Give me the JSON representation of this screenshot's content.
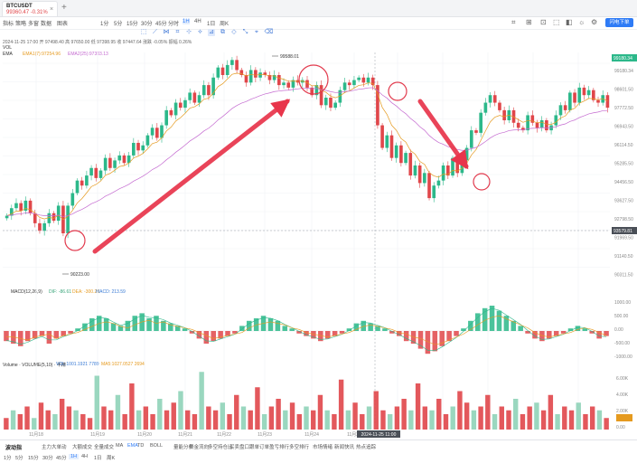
{
  "tab": {
    "symbol": "BTCUSDT",
    "price_line": "99360.47 -0.31%",
    "close": "×",
    "add": "+"
  },
  "toolbar": {
    "items": [
      "指标",
      "策略",
      "多窗",
      "数据",
      "图表",
      "1分",
      "5分",
      "15分",
      "30分",
      "45分",
      "分时",
      "1H",
      "4H",
      "1日",
      "周K"
    ],
    "selected": "1H",
    "right_icons": [
      "⌗",
      "⊞",
      "⊡",
      "⬚",
      "◧",
      "☼",
      "⚙"
    ],
    "order_button": "闪电下单"
  },
  "draw_tools": {
    "icons": [
      "⬚",
      "⟋",
      "⋈",
      "⌗",
      "⊹",
      "⟡",
      "⊿",
      "⧉",
      "◇",
      "⤡",
      "⌖",
      "⌫"
    ],
    "active_index": 6
  },
  "info": {
    "ohlc": "2024-11-25 17:00 开 97498.40 高 97650.00 低 97398.95 收 97447.64 涨跌 -0.05% 振幅 0.26%",
    "vol": "VOL",
    "ema_name": "EMA",
    "ema1": "EMA1(7):97254.96",
    "ema2": "EMA2(25):97303.13"
  },
  "price_axis": {
    "labels": [
      "99180.34",
      "98601.50",
      "97772.50",
      "96943.50",
      "96114.50",
      "95285.50",
      "94456.50",
      "93627.50",
      "92798.50",
      "91969.50",
      "91140.50",
      "90311.50"
    ],
    "current_price": "99180.34",
    "crosshair_price": "93579.81"
  },
  "macd": {
    "label": "MACD(12,26,9)",
    "dif": "DIF: -86.61",
    "dea": "DEA: -300.20",
    "macd": "MACD: 213.59",
    "axis": [
      "1000.00",
      "500.00",
      "0.00",
      "-500.00",
      "-1000.00"
    ]
  },
  "volume": {
    "label": "Volume · VOLUME(5,10) · 半精",
    "v": "VOL:1001.1921 7789",
    "ma5": "MA5:1027.0527 2694",
    "axis": [
      "6.00K",
      "4.00K",
      "2.00K",
      "0.00"
    ]
  },
  "time_axis": {
    "labels": [
      "11月18",
      "11月19",
      "11月20",
      "11月21",
      "11月22",
      "11月23",
      "11月24",
      "11月25"
    ],
    "crosshair": "2024-11-25 11:00"
  },
  "bottom": {
    "categories": [
      "波动指",
      "主力大单动",
      "大额成交",
      "全量成交",
      "MA",
      "EMA",
      "TD",
      "BOLL",
      "量能分布",
      "资金流向",
      "多空持仓比",
      "买卖盘口",
      "跟单订单",
      "盈亏排行",
      "多空排行",
      "市场情绪",
      "新闻快讯",
      "热点追踪"
    ],
    "selected_category": "EMA",
    "periods": [
      "1分",
      "5分",
      "15分",
      "30分",
      "45分",
      "1H",
      "4H",
      "1日",
      "周K"
    ],
    "selected_period": "1H"
  },
  "chart_data": {
    "type": "candlestick",
    "ylim": [
      90311,
      99600
    ],
    "candle_close_trend": [
      93100,
      93400,
      93600,
      93300,
      93700,
      93200,
      92800,
      92500,
      92800,
      93200,
      92900,
      93500,
      92400,
      93500,
      94000,
      94500,
      94300,
      94700,
      95000,
      94600,
      94900,
      95400,
      95000,
      95300,
      95500,
      95200,
      95500,
      96000,
      95700,
      95900,
      96300,
      96600,
      96200,
      96700,
      97300,
      97100,
      97600,
      97400,
      97700,
      98000,
      97600,
      97900,
      98300,
      97900,
      98600,
      99000,
      98700,
      99100,
      99300,
      98900,
      98700,
      98400,
      98900,
      98600,
      98800,
      98700,
      98500,
      98700,
      98300,
      98400,
      98200,
      98500,
      98400,
      98500,
      98200,
      97900,
      98300,
      97500,
      97800,
      97400,
      97600,
      98100,
      98400,
      98300,
      98500,
      98600,
      98400,
      98600,
      98300,
      96700,
      95800,
      96300,
      95400,
      95900,
      95200,
      95600,
      94700,
      95100,
      94400,
      94800,
      93800,
      94300,
      94500,
      95100,
      94700,
      95400,
      94800,
      95300,
      95800,
      96500,
      96400,
      97200,
      97600,
      97900,
      97600,
      97300,
      96900,
      97300,
      96800,
      96600,
      96500,
      97100,
      96800,
      96600,
      96900,
      96500,
      96700,
      97100,
      97500,
      97300,
      98000,
      97600,
      98200,
      97900,
      98100,
      97700,
      97600,
      97900,
      97400
    ],
    "macd_histogram_trend": [
      -0.4,
      -0.5,
      -0.6,
      -0.4,
      -0.3,
      -0.2,
      -0.5,
      -0.3,
      -0.2,
      -0.1,
      0.1,
      0.3,
      0.5,
      0.6,
      0.5,
      0.3,
      0.2,
      0.4,
      0.6,
      0.7,
      0.5,
      0.6,
      0.4,
      0.3,
      0.2,
      0.1,
      -0.1,
      -0.3,
      -0.5,
      -0.4,
      -0.3,
      -0.2,
      -0.1,
      0.2,
      0.4,
      0.5,
      0.6,
      0.5,
      0.4,
      0.2,
      0.1,
      -0.1,
      -0.2,
      -0.3,
      -0.4,
      -0.3,
      -0.2,
      -0.1,
      0.1,
      0.3,
      0.4,
      0.3,
      0.2,
      0.1,
      -0.1,
      -0.2,
      -0.4,
      -0.5,
      -0.7,
      -0.9,
      -0.8,
      -0.6,
      -0.4,
      -0.2,
      0.1,
      0.4,
      0.7,
      0.9,
      1.0,
      0.8,
      0.6,
      0.4,
      0.2,
      -0.1,
      -0.3,
      -0.4,
      -0.3,
      -0.2,
      -0.1,
      0.1,
      0.2,
      0.1,
      -0.1,
      -0.3,
      -0.2
    ],
    "volume_trend": [
      0.3,
      0.5,
      0.4,
      0.6,
      0.3,
      0.7,
      0.5,
      0.4,
      0.8,
      0.6,
      0.5,
      0.4,
      0.3,
      1.4,
      0.6,
      0.5,
      0.9,
      0.4,
      1.2,
      0.5,
      0.6,
      0.4,
      0.8,
      0.5,
      0.7,
      1.0,
      0.5,
      0.4,
      1.5,
      0.6,
      0.5,
      0.7,
      0.4,
      0.9,
      0.6,
      0.5,
      1.1,
      0.4,
      0.6,
      0.8,
      0.5,
      0.7,
      0.4,
      0.6,
      0.5,
      0.9,
      0.5,
      0.4,
      1.3,
      0.5,
      0.7,
      0.4,
      0.6,
      1.0,
      0.5,
      0.4,
      0.6,
      0.8,
      0.5,
      1.2,
      0.6,
      0.5,
      0.8,
      0.4,
      0.6,
      1.0,
      0.7,
      0.5,
      0.6,
      0.9,
      0.4,
      0.6,
      0.5,
      0.8,
      0.4,
      0.6,
      0.7,
      0.5,
      0.9,
      0.4,
      0.6,
      0.5,
      0.7,
      0.4,
      0.6,
      0.5,
      0.3
    ]
  }
}
